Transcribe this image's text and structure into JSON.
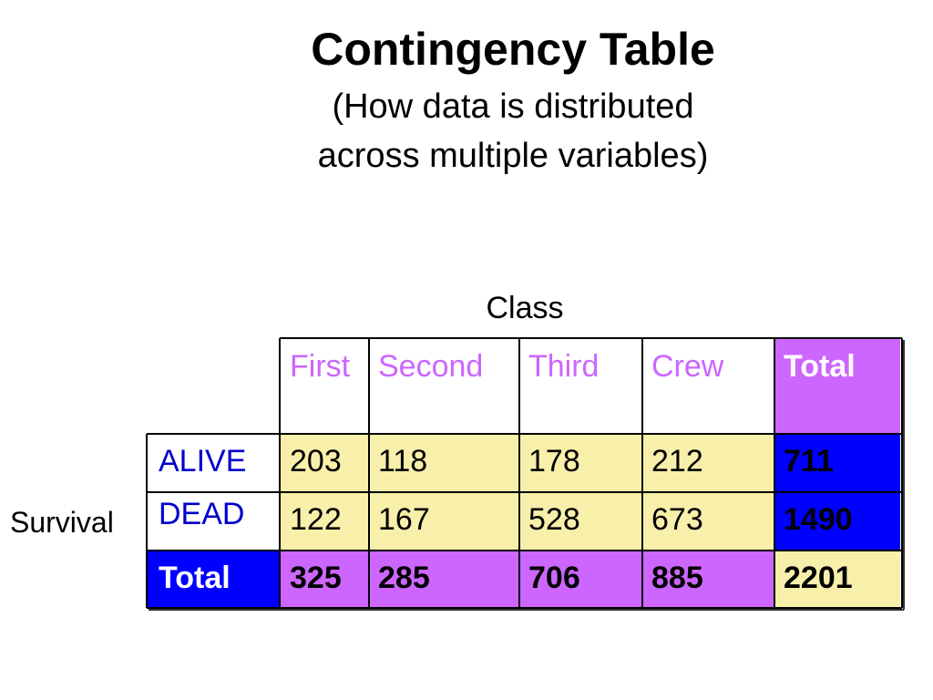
{
  "slide": {
    "title": "Contingency Table",
    "subtitle_line1": "(How data is distributed",
    "subtitle_line2": "across multiple variables)"
  },
  "table": {
    "column_variable": "Class",
    "row_variable": "Survival",
    "columns": [
      "First",
      "Second",
      "Third",
      "Crew",
      "Total"
    ],
    "rows": [
      {
        "label": "ALIVE",
        "values": [
          "203",
          "118",
          "178",
          "212",
          "711"
        ]
      },
      {
        "label": "DEAD",
        "values": [
          "122",
          "167",
          "528",
          "673",
          "1490"
        ]
      },
      {
        "label": "Total",
        "values": [
          "325",
          "285",
          "706",
          "885",
          "2201"
        ]
      }
    ]
  },
  "colors": {
    "data_cell_bg": "#F8EFAA",
    "total_header_bg": "#CC66FF",
    "total_row_bg": "#CC66FF",
    "total_col_bg": "#0000FF",
    "grand_total_bg": "#F8EFAA",
    "row_label_bg": "#0000FF",
    "header_text": "#CC66FF",
    "row_label_text": "#0000CC",
    "total_label_text": "#FFFFFF",
    "border": "#000000"
  }
}
